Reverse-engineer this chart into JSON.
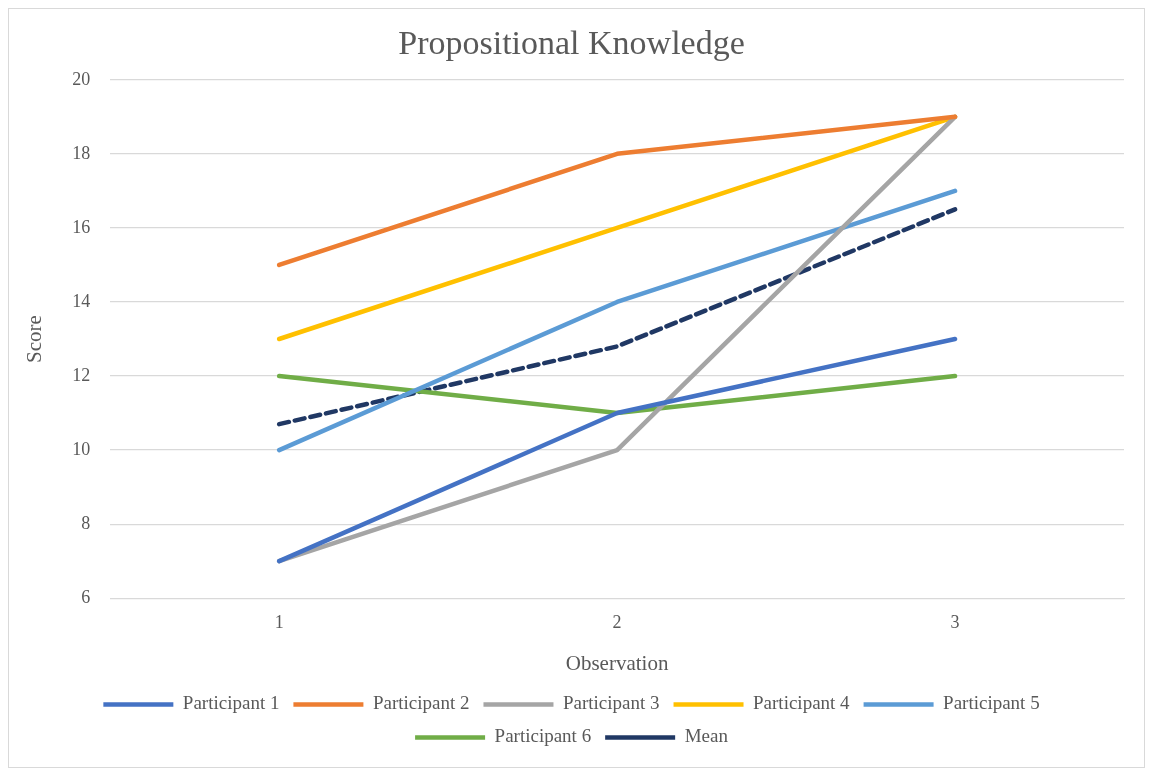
{
  "chart_data": {
    "type": "line",
    "title": "Propositional Knowledge",
    "xlabel": "Observation",
    "ylabel": "Score",
    "categories": [
      "1",
      "2",
      "3"
    ],
    "series": [
      {
        "name": "Participant 1",
        "color": "#4472c4",
        "values": [
          7,
          11,
          13
        ]
      },
      {
        "name": "Participant 2",
        "color": "#ed7d31",
        "values": [
          15,
          18,
          19
        ]
      },
      {
        "name": "Participant 3",
        "color": "#a5a5a5",
        "values": [
          7,
          10,
          19
        ]
      },
      {
        "name": "Participant 4",
        "color": "#ffc000",
        "values": [
          13,
          16,
          19
        ]
      },
      {
        "name": "Participant 5",
        "color": "#5b9bd5",
        "values": [
          10,
          14,
          17
        ]
      },
      {
        "name": "Participant 6",
        "color": "#70ad47",
        "values": [
          12,
          11,
          12
        ]
      },
      {
        "name": "Mean",
        "color": "#203864",
        "values": [
          10.7,
          12.8,
          16.5
        ],
        "line_style": "dashed"
      }
    ],
    "ylim": [
      6,
      20
    ],
    "yticks": [
      6,
      8,
      10,
      12,
      14,
      16,
      18,
      20
    ],
    "grid": "y",
    "legend": "bottom",
    "marker": "none",
    "line_style": "solid"
  }
}
